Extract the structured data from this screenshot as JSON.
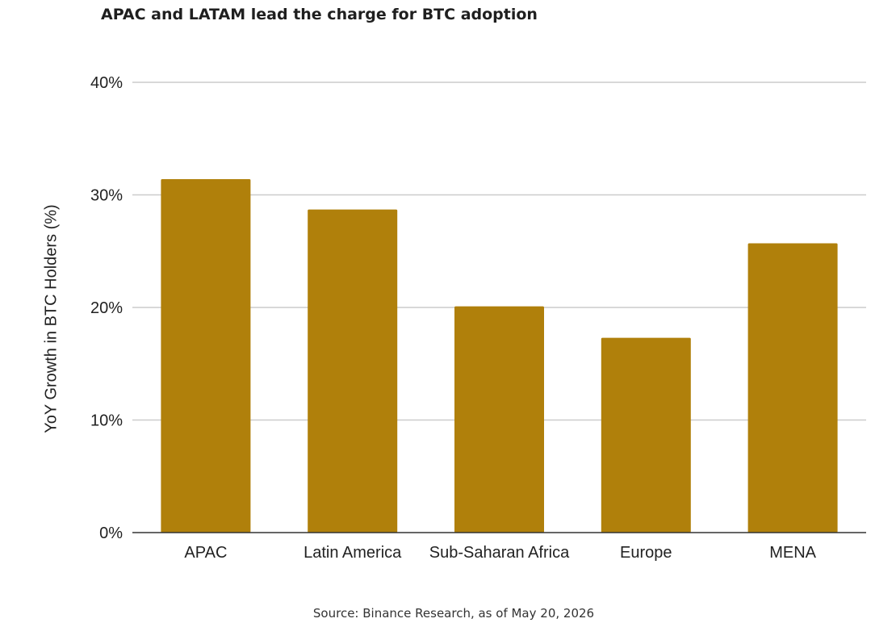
{
  "chart_data": {
    "type": "bar",
    "title": "APAC and LATAM lead the charge for BTC adoption",
    "ylabel": "YoY Growth in BTC Holders (%)",
    "xlabel": "",
    "categories": [
      "APAC",
      "Latin America",
      "Sub-Saharan Africa",
      "Europe",
      "MENA"
    ],
    "values": [
      31.4,
      28.7,
      20.1,
      17.3,
      25.7
    ],
    "value_unit": "%",
    "ylim": [
      0,
      40
    ],
    "y_ticks": [
      {
        "value": 0,
        "label": "0%"
      },
      {
        "value": 10,
        "label": "10%"
      },
      {
        "value": 20,
        "label": "20%"
      },
      {
        "value": 30,
        "label": "30%"
      },
      {
        "value": 40,
        "label": "40%"
      }
    ],
    "grid": true,
    "legend": "none",
    "bar_color": "#b0800b",
    "grid_color": "#cccccc",
    "axis_color": "#333333",
    "source": "Source: Binance Research, as of May 20, 2026"
  }
}
